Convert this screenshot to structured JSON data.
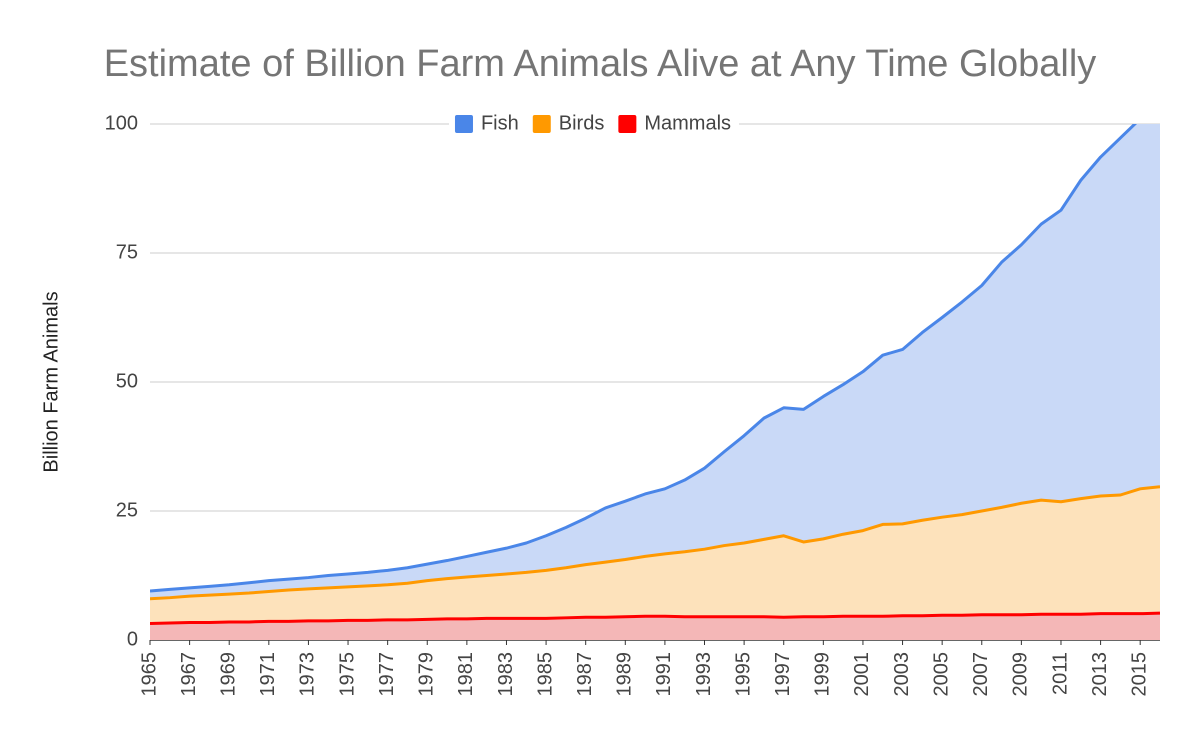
{
  "chart_data": {
    "type": "stacked_area",
    "title": "Estimate of Billion Farm Animals Alive at Any Time Globally",
    "y_label": "Billion Farm Animals",
    "x": [
      1965,
      1966,
      1967,
      1968,
      1969,
      1970,
      1971,
      1972,
      1973,
      1974,
      1975,
      1976,
      1977,
      1978,
      1979,
      1980,
      1981,
      1982,
      1983,
      1984,
      1985,
      1986,
      1987,
      1988,
      1989,
      1990,
      1991,
      1992,
      1993,
      1994,
      1995,
      1996,
      1997,
      1998,
      1999,
      2000,
      2001,
      2002,
      2003,
      2004,
      2005,
      2006,
      2007,
      2008,
      2009,
      2010,
      2011,
      2012,
      2013,
      2014,
      2015,
      2016
    ],
    "xlim": [
      1965,
      2016
    ],
    "xticks": [
      1965,
      1967,
      1969,
      1971,
      1973,
      1975,
      1977,
      1979,
      1981,
      1983,
      1985,
      1987,
      1989,
      1991,
      1993,
      1995,
      1997,
      1999,
      2001,
      2003,
      2005,
      2007,
      2009,
      2011,
      2013,
      2015
    ],
    "ylim": [
      0,
      100
    ],
    "yticks": [
      0,
      25,
      50,
      75,
      100
    ],
    "grid": true,
    "legend": "top",
    "series": [
      {
        "name": "Mammals",
        "color": "#ff0000",
        "fill": "#f4b7b7",
        "values": [
          3.2,
          3.3,
          3.4,
          3.4,
          3.5,
          3.5,
          3.6,
          3.6,
          3.7,
          3.7,
          3.8,
          3.8,
          3.9,
          3.9,
          4.0,
          4.1,
          4.1,
          4.2,
          4.2,
          4.2,
          4.2,
          4.3,
          4.4,
          4.4,
          4.5,
          4.6,
          4.6,
          4.5,
          4.5,
          4.5,
          4.5,
          4.5,
          4.4,
          4.5,
          4.5,
          4.6,
          4.6,
          4.6,
          4.7,
          4.7,
          4.8,
          4.8,
          4.9,
          4.9,
          4.9,
          5.0,
          5.0,
          5.0,
          5.1,
          5.1,
          5.1,
          5.2
        ]
      },
      {
        "name": "Birds",
        "color": "#ff9900",
        "fill": "#fde2bb",
        "values": [
          4.8,
          4.9,
          5.1,
          5.3,
          5.4,
          5.6,
          5.8,
          6.1,
          6.2,
          6.4,
          6.5,
          6.7,
          6.8,
          7.1,
          7.5,
          7.8,
          8.1,
          8.3,
          8.6,
          8.9,
          9.3,
          9.7,
          10.2,
          10.7,
          11.1,
          11.6,
          12.1,
          12.6,
          13.1,
          13.8,
          14.3,
          15.0,
          15.8,
          14.5,
          15.1,
          15.9,
          16.6,
          17.8,
          17.8,
          18.5,
          19.0,
          19.5,
          20.1,
          20.8,
          21.6,
          22.1,
          21.8,
          22.4,
          22.8,
          23.0,
          24.2,
          24.5
        ]
      },
      {
        "name": "Fish",
        "color": "#4a86e8",
        "fill": "#c9d9f7",
        "values": [
          1.5,
          1.6,
          1.6,
          1.7,
          1.8,
          2.0,
          2.1,
          2.1,
          2.2,
          2.4,
          2.5,
          2.6,
          2.8,
          3.0,
          3.2,
          3.5,
          4.0,
          4.5,
          5.0,
          5.7,
          6.7,
          7.8,
          9.0,
          10.5,
          11.3,
          12.1,
          12.6,
          13.9,
          15.7,
          18.2,
          20.8,
          23.5,
          24.8,
          25.7,
          27.6,
          29.0,
          30.8,
          32.8,
          33.8,
          36.4,
          38.7,
          41.2,
          43.7,
          47.5,
          50.1,
          53.5,
          56.5,
          61.7,
          65.7,
          69.2,
          71.7,
          75.3
        ]
      }
    ]
  }
}
